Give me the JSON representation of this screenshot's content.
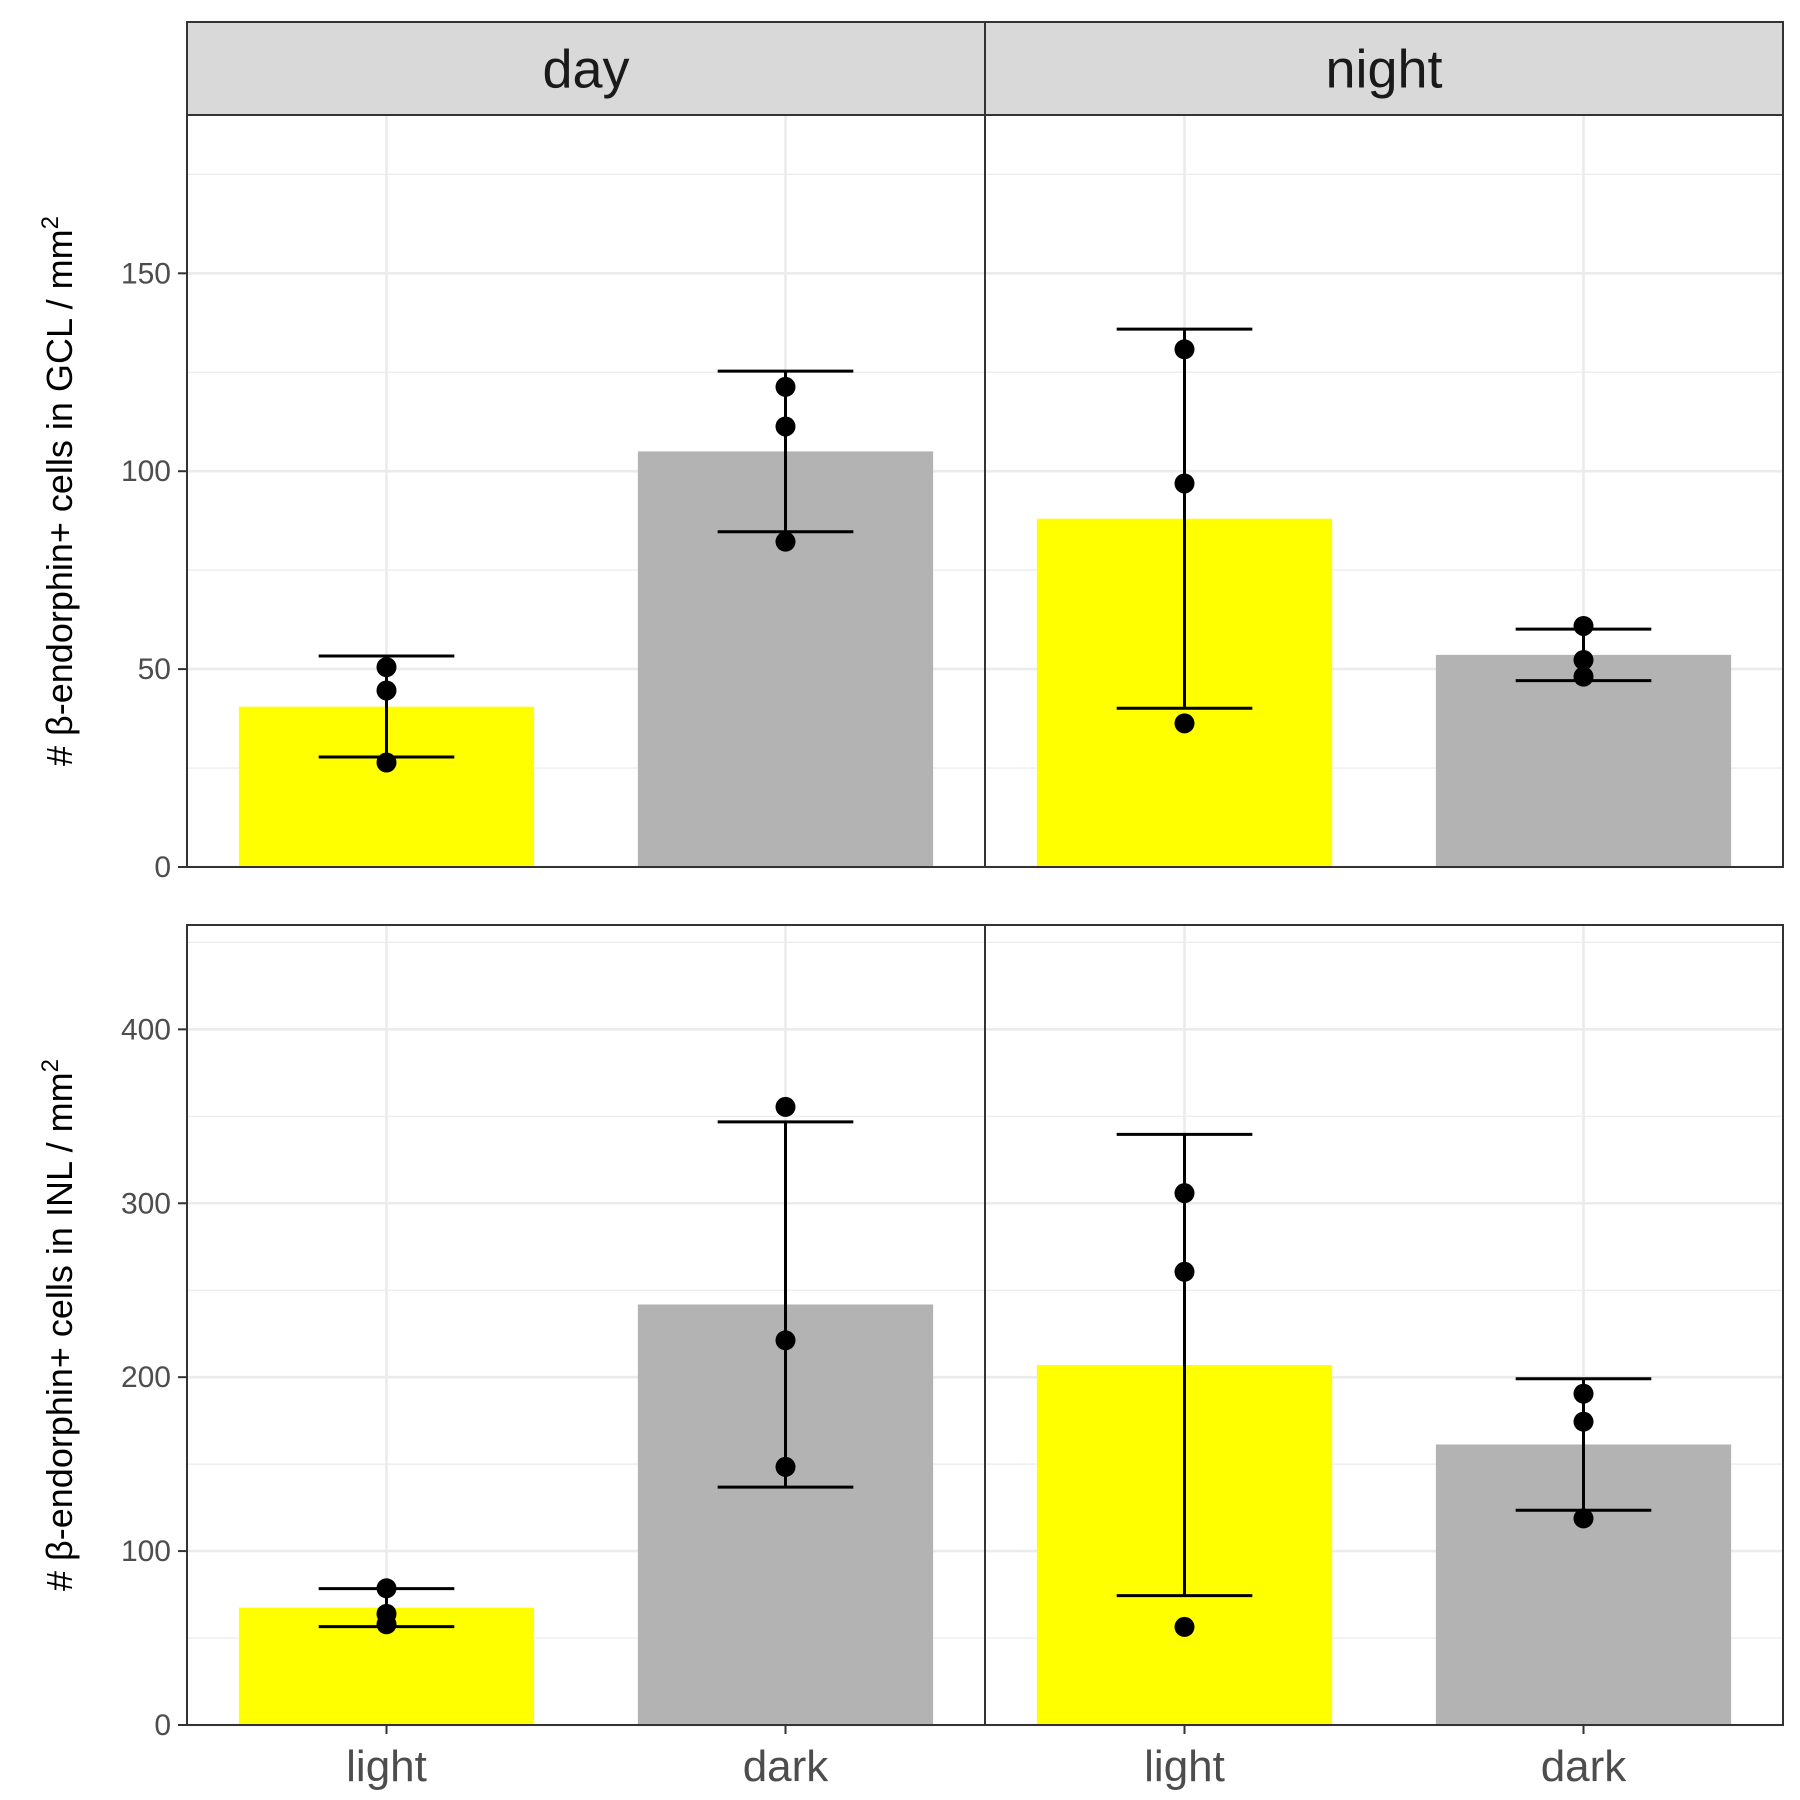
{
  "chart_data": {
    "type": "bar",
    "facets": {
      "columns": [
        "day",
        "night"
      ]
    },
    "categories": [
      "light",
      "dark"
    ],
    "colors": {
      "light": "#ffff00",
      "dark": "#b3b3b3"
    },
    "grid": true,
    "panels": [
      {
        "ylabel": "# β-endorphin+ cells in GCL / mm",
        "ylabel_superscript": "2",
        "ylim": [
          0,
          190
        ],
        "yticks": [
          0,
          50,
          100,
          150
        ],
        "ytick_labels": [
          "0",
          "50",
          "100",
          "150"
        ],
        "groups": [
          {
            "facet": "day",
            "bars": [
              {
                "category": "light",
                "value": 40.5,
                "error": [
                  27.8,
                  53.3
                ],
                "points": [
                  50.5,
                  44.6,
                  26.4
                ]
              },
              {
                "category": "dark",
                "value": 105,
                "error": [
                  84.7,
                  125.3
                ],
                "points": [
                  121.3,
                  111.3,
                  82.2
                ]
              }
            ]
          },
          {
            "facet": "night",
            "bars": [
              {
                "category": "light",
                "value": 88,
                "error": [
                  40.1,
                  135.9
                ],
                "points": [
                  130.8,
                  96.9,
                  36.3
                ]
              },
              {
                "category": "dark",
                "value": 53.6,
                "error": [
                  47.1,
                  60.1
                ],
                "points": [
                  60.9,
                  52.3,
                  48.1
                ]
              }
            ]
          }
        ]
      },
      {
        "ylabel": "# β-endorphin+ cells in INL / mm",
        "ylabel_superscript": "2",
        "ylim": [
          0,
          460
        ],
        "yticks": [
          0,
          100,
          200,
          300,
          400
        ],
        "ytick_labels": [
          "0",
          "100",
          "200",
          "300",
          "400"
        ],
        "groups": [
          {
            "facet": "day",
            "bars": [
              {
                "category": "light",
                "value": 67.5,
                "error": [
                  56.6,
                  78.4
                ],
                "points": [
                  78.6,
                  63.9,
                  57.9
                ]
              },
              {
                "category": "dark",
                "value": 241.8,
                "error": [
                  136.8,
                  346.8
                ],
                "points": [
                  355.4,
                  221.2,
                  148.4
                ]
              }
            ]
          },
          {
            "facet": "night",
            "bars": [
              {
                "category": "light",
                "value": 207,
                "error": [
                  74.4,
                  339.6
                ],
                "points": [
                  305.8,
                  260.6,
                  56.4
                ]
              },
              {
                "category": "dark",
                "value": 161.3,
                "error": [
                  123.5,
                  199.1
                ],
                "points": [
                  190.5,
                  174.4,
                  118.8
                ]
              }
            ]
          }
        ]
      }
    ]
  }
}
